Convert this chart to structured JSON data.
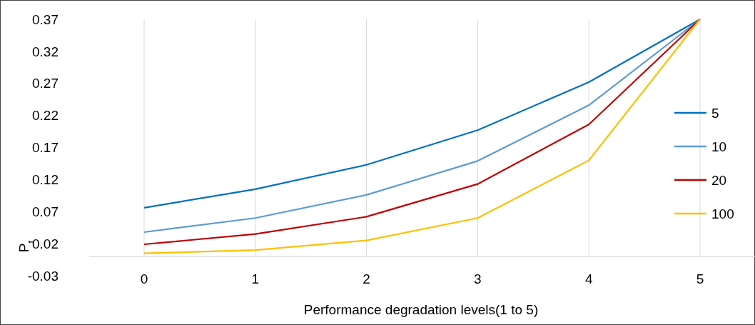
{
  "chart_data": {
    "type": "line",
    "xlabel": "Performance degradation levels(1 to 5)",
    "ylabel": "P$_{t}$",
    "categories": [
      "0",
      "1",
      "2",
      "3",
      "4",
      "5"
    ],
    "series": [
      {
        "name": "5",
        "color": "#0070c0",
        "values": [
          0.076,
          0.105,
          0.143,
          0.197,
          0.272,
          0.37
        ]
      },
      {
        "name": "10",
        "color": "#5b9bd5",
        "values": [
          0.038,
          0.06,
          0.096,
          0.149,
          0.236,
          0.37
        ]
      },
      {
        "name": "20",
        "color": "#c00000",
        "values": [
          0.019,
          0.035,
          0.062,
          0.113,
          0.206,
          0.37
        ]
      },
      {
        "name": "100",
        "color": "#ffc000",
        "values": [
          0.005,
          0.01,
          0.025,
          0.06,
          0.15,
          0.37
        ]
      }
    ],
    "ylim": [
      -0.03,
      0.37
    ],
    "yticks": [
      {
        "value": -0.03,
        "label": "-0.03"
      },
      {
        "value": 0.02,
        "label": "0.02"
      },
      {
        "value": 0.07,
        "label": "0.07"
      },
      {
        "value": 0.12,
        "label": "0.12"
      },
      {
        "value": 0.17,
        "label": "0.17"
      },
      {
        "value": 0.22,
        "label": "0.22"
      },
      {
        "value": 0.27,
        "label": "0.27"
      },
      {
        "value": 0.32,
        "label": "0.32"
      },
      {
        "value": 0.37,
        "label": "0.37"
      }
    ],
    "grid": "x",
    "legend": "right",
    "marker": "none",
    "line_style": "solid"
  }
}
